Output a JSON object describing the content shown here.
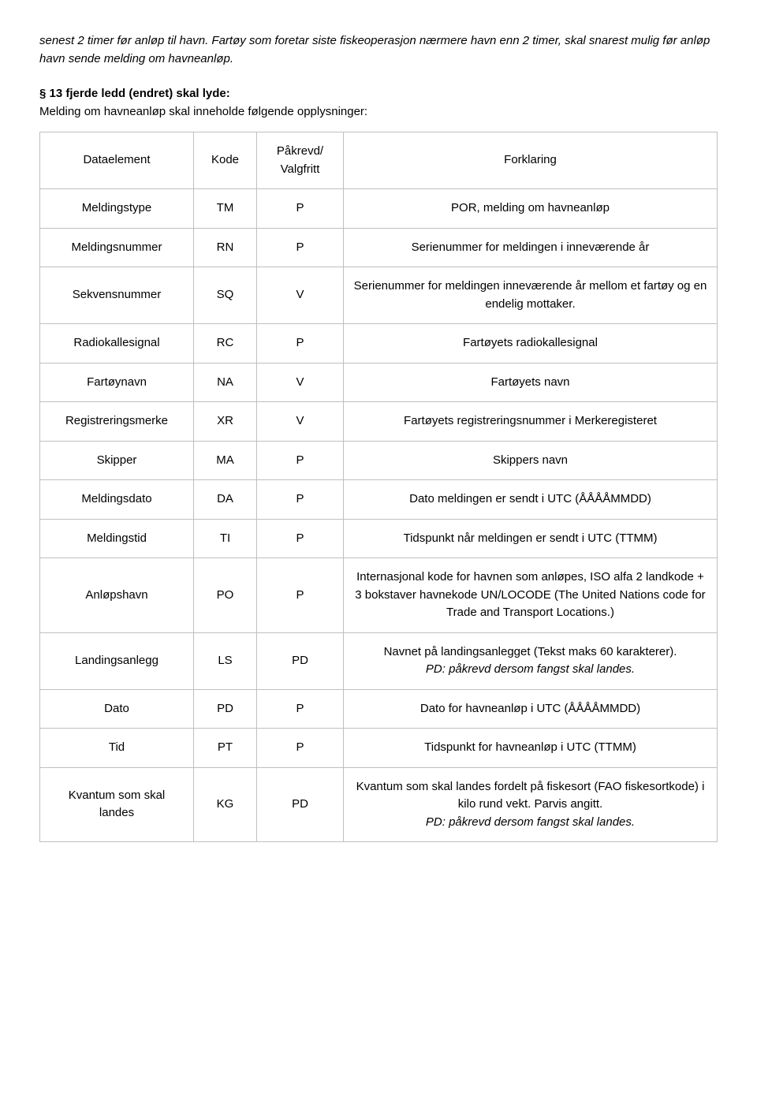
{
  "intro": "senest 2 timer før anløp til havn. Fartøy som foretar siste fiskeoperasjon nærmere havn enn 2 timer, skal snarest mulig før anløp havn sende melding om havneanløp.",
  "section_bold": "§ 13 fjerde ledd (endret) skal lyde:",
  "section_rest": "Melding om havneanløp skal inneholde følgende opplysninger:",
  "table": {
    "header": {
      "c0": "Dataelement",
      "c1": "Kode",
      "c2": "Påkrevd/ Valgfritt",
      "c3": "Forklaring"
    },
    "rows": [
      {
        "c0": "Meldingstype",
        "c1": "TM",
        "c2": "P",
        "c3": "POR, melding om havneanløp"
      },
      {
        "c0": "Meldingsnummer",
        "c1": "RN",
        "c2": "P",
        "c3": "Serienummer for meldingen i inneværende år"
      },
      {
        "c0": "Sekvensnummer",
        "c1": "SQ",
        "c2": "V",
        "c3": "Serienummer for meldingen inneværende år mellom et fartøy og en endelig mottaker."
      },
      {
        "c0": "Radiokallesignal",
        "c1": "RC",
        "c2": "P",
        "c3": "Fartøyets radiokallesignal"
      },
      {
        "c0": "Fartøynavn",
        "c1": "NA",
        "c2": "V",
        "c3": "Fartøyets navn"
      },
      {
        "c0": "Registreringsmerke",
        "c1": "XR",
        "c2": "V",
        "c3": "Fartøyets registreringsnummer i Merkeregisteret"
      },
      {
        "c0": "Skipper",
        "c1": "MA",
        "c2": "P",
        "c3": "Skippers navn"
      },
      {
        "c0": "Meldingsdato",
        "c1": "DA",
        "c2": "P",
        "c3": "Dato meldingen er sendt i UTC (ÅÅÅÅMMDD)"
      },
      {
        "c0": "Meldingstid",
        "c1": "TI",
        "c2": "P",
        "c3": "Tidspunkt når meldingen er sendt i UTC (TTMM)"
      },
      {
        "c0": "Anløpshavn",
        "c1": "PO",
        "c2": "P",
        "c3": "Internasjonal kode for havnen som anløpes, ISO alfa 2 landkode + 3 bokstaver havnekode UN/LOCODE (The United Nations code for Trade and Transport Locations.)"
      },
      {
        "c0": "Landingsanlegg",
        "c1": "LS",
        "c2": "PD",
        "c3": "Navnet på landingsanlegget (Tekst maks 60 karakterer).",
        "c3_italic": "PD: påkrevd dersom fangst skal landes."
      },
      {
        "c0": "Dato",
        "c1": "PD",
        "c2": "P",
        "c3": "Dato for havneanløp i UTC (ÅÅÅÅMMDD)"
      },
      {
        "c0": "Tid",
        "c1": "PT",
        "c2": "P",
        "c3": "Tidspunkt for havneanløp i UTC (TTMM)"
      },
      {
        "c0": "Kvantum som skal landes",
        "c1": "KG",
        "c2": "PD",
        "c3": "Kvantum som skal landes fordelt på fiskesort (FAO fiskesortkode) i kilo rund vekt. Parvis angitt.",
        "c3_italic": "PD: påkrevd dersom fangst skal landes."
      }
    ]
  }
}
